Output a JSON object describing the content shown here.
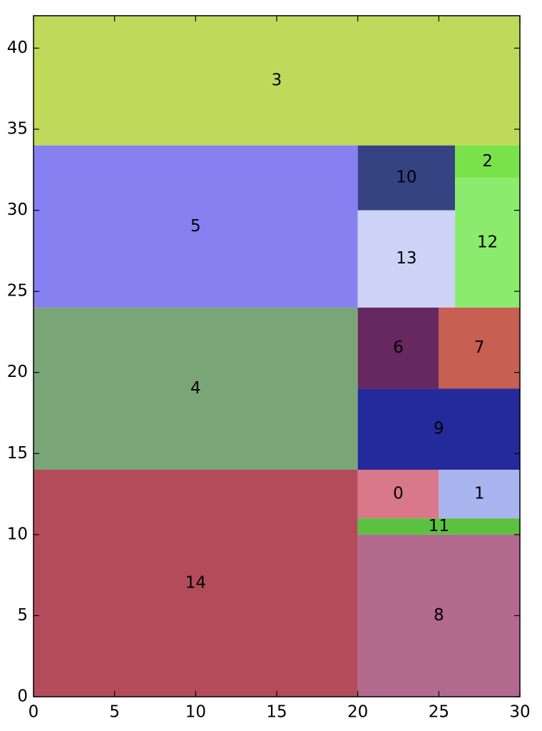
{
  "chart_data": {
    "type": "rectangles",
    "xlim": [
      0,
      30
    ],
    "ylim": [
      0,
      42
    ],
    "xticks": [
      0,
      5,
      10,
      15,
      20,
      25,
      30
    ],
    "yticks": [
      0,
      5,
      10,
      15,
      20,
      25,
      30,
      35,
      40
    ],
    "grid": false,
    "rects": [
      {
        "label": "3",
        "x": 0,
        "y": 34,
        "width": 30,
        "height": 8,
        "color": "#bfd95a"
      },
      {
        "label": "5",
        "x": 0,
        "y": 24,
        "width": 20,
        "height": 10,
        "color": "#8680f0"
      },
      {
        "label": "4",
        "x": 0,
        "y": 14,
        "width": 20,
        "height": 10,
        "color": "#7aa677"
      },
      {
        "label": "14",
        "x": 0,
        "y": 0,
        "width": 20,
        "height": 14,
        "color": "#b44b5b"
      },
      {
        "label": "10",
        "x": 20,
        "y": 30,
        "width": 6,
        "height": 4,
        "color": "#354383"
      },
      {
        "label": "2",
        "x": 26,
        "y": 32,
        "width": 4,
        "height": 2,
        "color": "#79e24a"
      },
      {
        "label": "12",
        "x": 26,
        "y": 24,
        "width": 4,
        "height": 8,
        "color": "#8beb6c"
      },
      {
        "label": "13",
        "x": 20,
        "y": 24,
        "width": 6,
        "height": 6,
        "color": "#cdd3f7"
      },
      {
        "label": "6",
        "x": 20,
        "y": 19,
        "width": 5,
        "height": 5,
        "color": "#66285e"
      },
      {
        "label": "7",
        "x": 25,
        "y": 19,
        "width": 5,
        "height": 5,
        "color": "#c75f52"
      },
      {
        "label": "9",
        "x": 20,
        "y": 14,
        "width": 10,
        "height": 5,
        "color": "#242a9a"
      },
      {
        "label": "0",
        "x": 20,
        "y": 11,
        "width": 5,
        "height": 3,
        "color": "#d8788a"
      },
      {
        "label": "1",
        "x": 25,
        "y": 11,
        "width": 5,
        "height": 3,
        "color": "#a9b5ef"
      },
      {
        "label": "11",
        "x": 20,
        "y": 10,
        "width": 10,
        "height": 1,
        "color": "#5cc140"
      },
      {
        "label": "8",
        "x": 20,
        "y": 0,
        "width": 10,
        "height": 10,
        "color": "#b36a8e"
      }
    ]
  }
}
